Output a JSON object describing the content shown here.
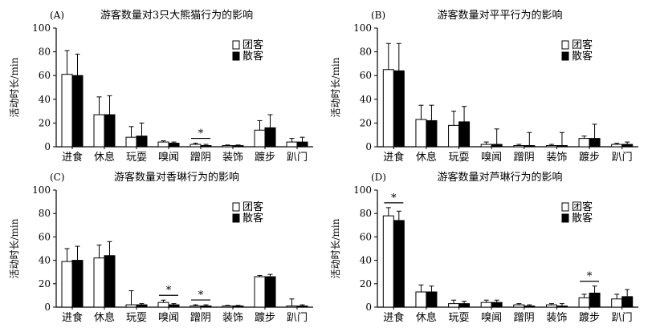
{
  "chart_data": [
    {
      "type": "bar",
      "panel_label": "(A)",
      "title": "游客数量对3只大熊猫行为的影响",
      "ylabel": "活动时长/min",
      "ylim": [
        0,
        100
      ],
      "yticks": [
        0,
        20,
        40,
        60,
        80,
        100
      ],
      "legend_position": "top-right",
      "categories": [
        "进食",
        "休息",
        "玩耍",
        "嗅闻",
        "蹭阴",
        "装饰",
        "踱步",
        "趴门"
      ],
      "series": [
        {
          "name": "团客",
          "fill": "#ffffff",
          "values": [
            61,
            27,
            8,
            4,
            2,
            1,
            14,
            4
          ],
          "errors": [
            20,
            15,
            9,
            1,
            1,
            0.5,
            8,
            3
          ]
        },
        {
          "name": "散客",
          "fill": "#000000",
          "values": [
            60,
            27,
            9,
            3,
            1,
            1,
            16,
            4
          ],
          "errors": [
            18,
            16,
            11,
            1,
            1,
            0.5,
            11,
            4
          ]
        }
      ],
      "significance": [
        {
          "category_index": 4,
          "label": "*"
        }
      ]
    },
    {
      "type": "bar",
      "panel_label": "(B)",
      "title": "游客数量对平平行为的影响",
      "ylabel": "活动时长/min",
      "ylim": [
        0,
        100
      ],
      "yticks": [
        0,
        20,
        40,
        60,
        80,
        100
      ],
      "legend_position": "top-right",
      "categories": [
        "进食",
        "休息",
        "玩耍",
        "嗅闻",
        "蹭阴",
        "装饰",
        "踱步",
        "趴门"
      ],
      "series": [
        {
          "name": "团客",
          "fill": "#ffffff",
          "values": [
            65,
            23,
            18,
            2,
            1,
            1,
            7,
            2
          ],
          "errors": [
            22,
            12,
            12,
            2,
            1,
            1,
            2,
            1
          ]
        },
        {
          "name": "散客",
          "fill": "#000000",
          "values": [
            64,
            22,
            21,
            2,
            1,
            1,
            7,
            2
          ],
          "errors": [
            23,
            13,
            13,
            13,
            11,
            11,
            12,
            2
          ]
        }
      ],
      "significance": []
    },
    {
      "type": "bar",
      "panel_label": "(C)",
      "title": "游客数量对香琳行为的影响",
      "ylabel": "活动时长/min",
      "ylim": [
        0,
        100
      ],
      "yticks": [
        0,
        20,
        40,
        60,
        80,
        100
      ],
      "legend_position": "top-right",
      "categories": [
        "进食",
        "休息",
        "玩耍",
        "嗅闻",
        "蹭阴",
        "装饰",
        "踱步",
        "趴门"
      ],
      "series": [
        {
          "name": "团客",
          "fill": "#ffffff",
          "values": [
            39,
            42,
            2,
            4,
            1,
            1,
            26,
            1
          ],
          "errors": [
            11,
            11,
            12,
            2,
            1,
            0.5,
            1,
            6
          ]
        },
        {
          "name": "散客",
          "fill": "#000000",
          "values": [
            40,
            44,
            2,
            2,
            1,
            1,
            26,
            1
          ],
          "errors": [
            12,
            12,
            1,
            1,
            1,
            0.5,
            2,
            1
          ]
        }
      ],
      "significance": [
        {
          "category_index": 3,
          "label": "*"
        },
        {
          "category_index": 4,
          "label": "*"
        }
      ]
    },
    {
      "type": "bar",
      "panel_label": "(D)",
      "title": "游客数量对芦琳行为的影响",
      "ylabel": "活动时长/min",
      "ylim": [
        0,
        100
      ],
      "yticks": [
        0,
        20,
        40,
        60,
        80,
        100
      ],
      "legend_position": "top-right",
      "categories": [
        "进食",
        "休息",
        "玩耍",
        "嗅闻",
        "蹭阴",
        "装饰",
        "踱步",
        "趴门"
      ],
      "series": [
        {
          "name": "团客",
          "fill": "#ffffff",
          "values": [
            78,
            13,
            3,
            4,
            2,
            2,
            8,
            7
          ],
          "errors": [
            7,
            6,
            3,
            2,
            1,
            1,
            3,
            4
          ]
        },
        {
          "name": "散客",
          "fill": "#000000",
          "values": [
            74,
            13,
            3,
            4,
            1,
            1,
            12,
            9
          ],
          "errors": [
            8,
            5,
            2,
            2,
            1,
            2,
            6,
            6
          ]
        }
      ],
      "significance": [
        {
          "category_index": 0,
          "label": "*"
        },
        {
          "category_index": 6,
          "label": "*"
        }
      ]
    }
  ]
}
